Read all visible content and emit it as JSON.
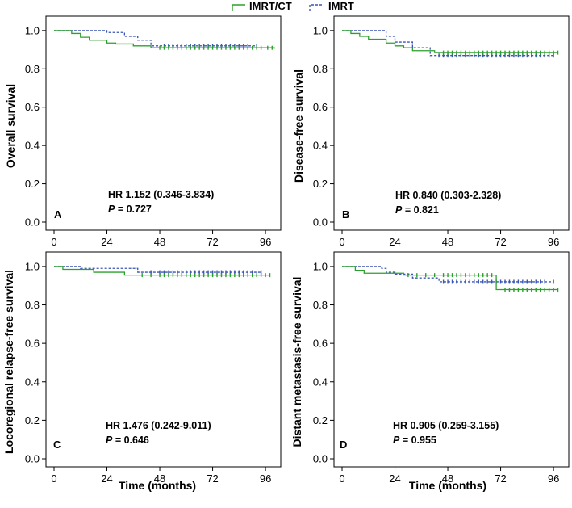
{
  "legend": {
    "entries": [
      {
        "label": "IMRT/CT",
        "color": "#2ca02c",
        "style": "solid"
      },
      {
        "label": "IMRT",
        "color": "#3a55b4",
        "style": "dashed"
      }
    ]
  },
  "xlabel": "Time (months)",
  "chart_data": [
    {
      "type": "line",
      "panel_letter": "A",
      "ylabel": "Overall survival",
      "xlim": [
        0,
        100
      ],
      "ylim": [
        0,
        1.05
      ],
      "xticks": [
        0,
        24,
        48,
        72,
        96
      ],
      "yticks": [
        "0.0",
        "0.2",
        "0.4",
        "0.6",
        "0.8",
        "1.0"
      ],
      "hr_text": "HR 1.152 (0.346-3.834)",
      "p_label": "P",
      "p_text": " = 0.727",
      "series": [
        {
          "name": "IMRT/CT",
          "steps": [
            [
              0,
              1.0
            ],
            [
              8,
              0.985
            ],
            [
              12,
              0.965
            ],
            [
              16,
              0.95
            ],
            [
              24,
              0.935
            ],
            [
              28,
              0.93
            ],
            [
              36,
              0.92
            ],
            [
              44,
              0.91
            ],
            [
              100,
              0.905
            ]
          ],
          "censor_x": [
            48,
            50,
            52,
            54,
            56,
            58,
            60,
            62,
            64,
            66,
            68,
            70,
            72,
            74,
            76,
            78,
            80,
            82,
            84,
            86,
            88,
            90,
            92,
            94,
            97,
            99
          ]
        },
        {
          "name": "IMRT",
          "steps": [
            [
              0,
              1.0
            ],
            [
              24,
              0.99
            ],
            [
              32,
              0.97
            ],
            [
              38,
              0.95
            ],
            [
              44,
              0.92
            ],
            [
              92,
              0.92
            ]
          ],
          "censor_x": [
            50,
            52,
            54,
            56,
            58,
            60,
            62,
            64,
            66,
            68,
            70,
            72,
            74,
            76,
            78,
            80,
            82,
            84,
            86,
            88,
            92
          ]
        }
      ]
    },
    {
      "type": "line",
      "panel_letter": "B",
      "ylabel": "Disease-free survival",
      "xlim": [
        0,
        100
      ],
      "ylim": [
        0,
        1.05
      ],
      "xticks": [
        0,
        24,
        48,
        72,
        96
      ],
      "yticks": [
        "0.0",
        "0.2",
        "0.4",
        "0.6",
        "0.8",
        "1.0"
      ],
      "hr_text": "HR 0.840 (0.303-2.328)",
      "p_label": "P",
      "p_text": " = 0.821",
      "series": [
        {
          "name": "IMRT/CT",
          "steps": [
            [
              0,
              1.0
            ],
            [
              4,
              0.985
            ],
            [
              8,
              0.97
            ],
            [
              12,
              0.955
            ],
            [
              20,
              0.935
            ],
            [
              24,
              0.92
            ],
            [
              28,
              0.91
            ],
            [
              32,
              0.895
            ],
            [
              42,
              0.885
            ],
            [
              98,
              0.885
            ]
          ],
          "censor_x": [
            46,
            48,
            50,
            52,
            54,
            56,
            58,
            60,
            62,
            64,
            66,
            68,
            70,
            72,
            74,
            76,
            78,
            80,
            82,
            84,
            86,
            88,
            90,
            92,
            94,
            96,
            98
          ]
        },
        {
          "name": "IMRT",
          "steps": [
            [
              0,
              1.0
            ],
            [
              20,
              0.97
            ],
            [
              24,
              0.94
            ],
            [
              32,
              0.91
            ],
            [
              40,
              0.87
            ],
            [
              96,
              0.87
            ]
          ],
          "censor_x": [
            44,
            46,
            48,
            50,
            52,
            54,
            56,
            58,
            60,
            62,
            64,
            66,
            68,
            70,
            72,
            74,
            76,
            78,
            80,
            82,
            84,
            86,
            88,
            90,
            92,
            94,
            96
          ]
        }
      ]
    },
    {
      "type": "line",
      "panel_letter": "C",
      "ylabel": "Locoregional relapse-free survival",
      "xlim": [
        0,
        100
      ],
      "ylim": [
        0,
        1.05
      ],
      "xticks": [
        0,
        24,
        48,
        72,
        96
      ],
      "yticks": [
        "0.0",
        "0.2",
        "0.4",
        "0.6",
        "0.8",
        "1.0"
      ],
      "hr_text": "HR 1.476 (0.242-9.011)",
      "p_label": "P",
      "p_text": " = 0.646",
      "series": [
        {
          "name": "IMRT/CT",
          "steps": [
            [
              0,
              1.0
            ],
            [
              4,
              0.985
            ],
            [
              18,
              0.97
            ],
            [
              32,
              0.955
            ],
            [
              98,
              0.955
            ]
          ],
          "censor_x": [
            40,
            44,
            48,
            50,
            52,
            54,
            56,
            58,
            60,
            62,
            64,
            66,
            68,
            70,
            72,
            74,
            76,
            78,
            80,
            82,
            84,
            86,
            88,
            90,
            92,
            94,
            96,
            98
          ]
        },
        {
          "name": "IMRT",
          "steps": [
            [
              0,
              1.0
            ],
            [
              12,
              0.99
            ],
            [
              38,
              0.97
            ],
            [
              94,
              0.97
            ]
          ],
          "censor_x": [
            44,
            48,
            50,
            52,
            54,
            56,
            58,
            60,
            62,
            64,
            66,
            68,
            70,
            72,
            74,
            76,
            78,
            80,
            82,
            84,
            86,
            88,
            90,
            94
          ]
        }
      ]
    },
    {
      "type": "line",
      "panel_letter": "D",
      "ylabel": "Distant metastasis-free survival",
      "xlim": [
        0,
        100
      ],
      "ylim": [
        0,
        1.05
      ],
      "xticks": [
        0,
        24,
        48,
        72,
        96
      ],
      "yticks": [
        "0.0",
        "0.2",
        "0.4",
        "0.6",
        "0.8",
        "1.0"
      ],
      "hr_text": "HR 0.905 (0.259-3.155)",
      "p_label": "P",
      "p_text": " = 0.955",
      "series": [
        {
          "name": "IMRT/CT",
          "steps": [
            [
              0,
              1.0
            ],
            [
              6,
              0.98
            ],
            [
              10,
              0.965
            ],
            [
              28,
              0.955
            ],
            [
              70,
              0.88
            ],
            [
              98,
              0.88
            ]
          ],
          "censor_x": [
            30,
            34,
            38,
            42,
            46,
            48,
            50,
            52,
            54,
            56,
            58,
            60,
            62,
            64,
            66,
            68,
            74,
            76,
            78,
            80,
            82,
            84,
            86,
            88,
            90,
            92,
            94,
            96,
            98
          ]
        },
        {
          "name": "IMRT",
          "steps": [
            [
              0,
              1.0
            ],
            [
              18,
              0.99
            ],
            [
              20,
              0.97
            ],
            [
              24,
              0.96
            ],
            [
              32,
              0.94
            ],
            [
              44,
              0.92
            ],
            [
              96,
              0.92
            ]
          ],
          "censor_x": [
            46,
            48,
            50,
            52,
            54,
            56,
            58,
            60,
            62,
            64,
            66,
            68,
            70,
            72,
            74,
            76,
            78,
            80,
            82,
            84,
            86,
            88,
            90,
            92,
            96
          ]
        }
      ]
    }
  ]
}
